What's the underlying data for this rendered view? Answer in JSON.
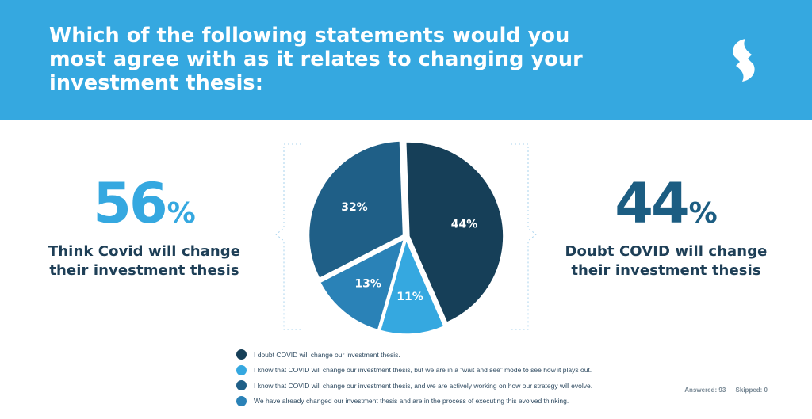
{
  "header": {
    "title": "Which of the following statements would you most agree with as it relates to changing your investment thesis:",
    "background": "#35a8e0"
  },
  "logo_icon": "brand-s-logo-icon",
  "left_stat": {
    "number": "56",
    "percent_sign": "%",
    "description_line1": "Think Covid will change",
    "description_line2": "their investment thesis",
    "color": "#35a8e0"
  },
  "right_stat": {
    "number": "44",
    "percent_sign": "%",
    "description_line1": "Doubt COVID will change",
    "description_line2": "their investment thesis",
    "color": "#1c5d82"
  },
  "chart_data": {
    "type": "pie",
    "title": "",
    "slices": [
      {
        "label": "I doubt COVID will change our investment thesis.",
        "value": 44,
        "display": "44%",
        "color": "#163f58"
      },
      {
        "label": "I know that COVID will change our investment thesis, but we are in a “wait and see” mode to see how it plays out.",
        "value": 11,
        "display": "11%",
        "color": "#35a8e0"
      },
      {
        "label": "We have already changed our investment thesis and are in the process of executing this evolved thinking.",
        "value": 13,
        "display": "13%",
        "color": "#2a82b7"
      },
      {
        "label": "I know that COVID will change our investment thesis, and we are actively working on how our strategy will evolve.",
        "value": 32,
        "display": "32%",
        "color": "#1f5f87"
      }
    ]
  },
  "legend": [
    {
      "label": "I doubt COVID will change our investment thesis.",
      "color": "#163f58"
    },
    {
      "label": "I know that COVID will change our investment thesis, but we are in a “wait and see” mode to see how it plays out.",
      "color": "#35a8e0"
    },
    {
      "label": "I know that COVID will change our investment thesis, and we are actively working on how our strategy will evolve.",
      "color": "#1f5f87"
    },
    {
      "label": "We have already changed our investment thesis and are in the process of executing this evolved thinking.",
      "color": "#2a82b7"
    }
  ],
  "meta": {
    "answered": "Answered: 93",
    "skipped": "Skipped: 0"
  }
}
